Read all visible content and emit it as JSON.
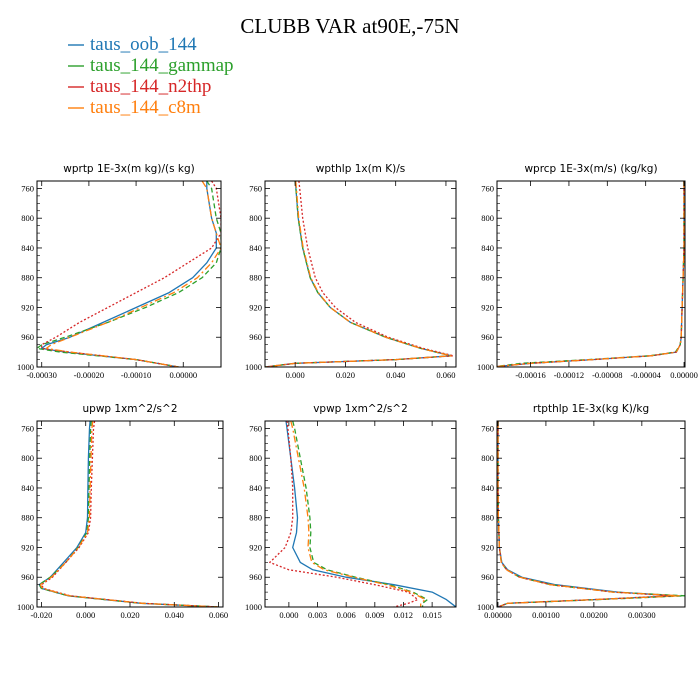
{
  "title": "CLUBB VAR at90E,-75N",
  "legend": [
    {
      "name": "taus_oob_144",
      "color": "#1f77b4",
      "dash": "solid"
    },
    {
      "name": "taus_144_gammap",
      "color": "#2ca02c",
      "dash": "dash"
    },
    {
      "name": "taus_144_n2thp",
      "color": "#d62728",
      "dash": "dot"
    },
    {
      "name": "taus_144_c8m",
      "color": "#ff7f0e",
      "dash": "dashdot"
    }
  ],
  "chart_data": [
    {
      "type": "line",
      "title": "wprtp  1E-3x(m kg)/(s kg)",
      "xlim": [
        -0.00031,
        8e-05
      ],
      "ylim": [
        1000,
        750
      ],
      "xticks": [
        -0.0003,
        -0.0002,
        -0.0001,
        0.0
      ],
      "xtick_labels": [
        "-0.00030",
        "-0.00020",
        "-0.00010",
        "0.00000"
      ],
      "yticks": [
        760,
        800,
        840,
        880,
        920,
        960,
        1000
      ],
      "y": [
        750,
        760,
        800,
        820,
        840,
        860,
        880,
        900,
        920,
        940,
        960,
        970,
        975,
        980,
        990,
        1000
      ],
      "series": [
        {
          "name": "taus_oob_144",
          "x": [
            5e-05,
            5e-05,
            6e-05,
            7e-05,
            7e-05,
            5e-05,
            2e-05,
            -3e-05,
            -0.0001,
            -0.00017,
            -0.00024,
            -0.00029,
            -0.0003,
            -0.00025,
            -0.0001,
            -1e-05
          ]
        },
        {
          "name": "taus_144_gammap",
          "x": [
            5e-05,
            6e-05,
            7e-05,
            8e-05,
            8e-05,
            7e-05,
            4e-05,
            -1e-05,
            -8e-05,
            -0.00016,
            -0.00025,
            -0.0003,
            -0.00031,
            -0.00026,
            -0.0001,
            -1e-05
          ]
        },
        {
          "name": "taus_144_n2thp",
          "x": [
            6e-05,
            7e-05,
            8e-05,
            8e-05,
            6e-05,
            1e-05,
            -4e-05,
            -0.0001,
            -0.00016,
            -0.00022,
            -0.00027,
            -0.0003,
            -0.0003,
            -0.00024,
            -0.0001,
            -1e-05
          ]
        },
        {
          "name": "taus_144_c8m",
          "x": [
            4e-05,
            5e-05,
            6e-05,
            7e-05,
            8e-05,
            6e-05,
            3e-05,
            -2e-05,
            -9e-05,
            -0.00016,
            -0.00024,
            -0.00028,
            -0.00029,
            -0.00024,
            -0.0001,
            -1e-05
          ]
        }
      ]
    },
    {
      "type": "line",
      "title": "wpthlp  1x(m K)/s",
      "xlim": [
        -0.012,
        0.064
      ],
      "ylim": [
        1000,
        750
      ],
      "xticks": [
        0.0,
        0.02,
        0.04,
        0.06
      ],
      "xtick_labels": [
        "0.000",
        "0.020",
        "0.040",
        "0.060"
      ],
      "yticks": [
        760,
        800,
        840,
        880,
        920,
        960,
        1000
      ],
      "y": [
        750,
        760,
        800,
        840,
        880,
        900,
        920,
        940,
        960,
        975,
        985,
        990,
        995,
        1000
      ],
      "series": [
        {
          "name": "taus_oob_144",
          "x": [
            0.0,
            0.0003,
            0.0012,
            0.003,
            0.006,
            0.009,
            0.014,
            0.022,
            0.036,
            0.05,
            0.062,
            0.04,
            0.0,
            -0.012
          ]
        },
        {
          "name": "taus_144_gammap",
          "x": [
            0.0,
            0.0003,
            0.0012,
            0.003,
            0.006,
            0.009,
            0.014,
            0.022,
            0.036,
            0.05,
            0.062,
            0.04,
            0.0,
            -0.012
          ]
        },
        {
          "name": "taus_144_n2thp",
          "x": [
            0.0015,
            0.0018,
            0.003,
            0.005,
            0.008,
            0.011,
            0.016,
            0.024,
            0.037,
            0.051,
            0.063,
            0.04,
            0.0,
            -0.012
          ]
        },
        {
          "name": "taus_144_c8m",
          "x": [
            0.0002,
            0.0005,
            0.0014,
            0.0032,
            0.0062,
            0.0092,
            0.014,
            0.022,
            0.036,
            0.05,
            0.062,
            0.04,
            0.0,
            -0.012
          ]
        }
      ]
    },
    {
      "type": "line",
      "title": "wprcp  1E-3x(m/s) (kg/kg)",
      "xlim": [
        -0.000195,
        1e-06
      ],
      "ylim": [
        1000,
        750
      ],
      "xticks": [
        -0.00016,
        -0.00012,
        -8e-05,
        -4e-05,
        0.0
      ],
      "xtick_labels": [
        "-0.00016",
        "-0.00012",
        "-0.00008",
        "-0.00004",
        "0.00000"
      ],
      "yticks": [
        760,
        800,
        840,
        880,
        920,
        960,
        1000
      ],
      "y": [
        750,
        760,
        800,
        840,
        880,
        920,
        960,
        970,
        980,
        985,
        990,
        995,
        1000
      ],
      "series": [
        {
          "name": "taus_oob_144",
          "x": [
            0.0,
            0.0,
            0.0,
            0.0,
            -1e-06,
            -2e-06,
            -3e-06,
            -4e-06,
            -8e-06,
            -3.5e-05,
            -9.5e-05,
            -0.00016,
            -0.0002
          ]
        },
        {
          "name": "taus_144_gammap",
          "x": [
            0.0,
            0.0,
            0.0,
            0.0,
            -1e-06,
            -2e-06,
            -3e-06,
            -4e-06,
            -9e-06,
            -3.6e-05,
            -0.0001,
            -0.00017,
            -0.0002
          ]
        },
        {
          "name": "taus_144_n2thp",
          "x": [
            0.0,
            0.0,
            0.0,
            0.0,
            -1e-06,
            -2e-06,
            -3e-06,
            -4e-06,
            -8e-06,
            -3.4e-05,
            -9.5e-05,
            -0.00016,
            -0.0002
          ]
        },
        {
          "name": "taus_144_c8m",
          "x": [
            0.0,
            0.0,
            0.0,
            0.0,
            -1e-06,
            -2e-06,
            -3e-06,
            -4e-06,
            -8e-06,
            -3.5e-05,
            -9.5e-05,
            -0.00016,
            -0.0002
          ]
        }
      ]
    },
    {
      "type": "line",
      "title": "upwp  1xm^2/s^2",
      "xlim": [
        -0.022,
        0.062
      ],
      "ylim": [
        1000,
        750
      ],
      "xticks": [
        -0.02,
        0.0,
        0.02,
        0.04,
        0.06
      ],
      "xtick_labels": [
        "-0.020",
        "0.000",
        "0.020",
        "0.040",
        "0.060"
      ],
      "yticks": [
        760,
        800,
        840,
        880,
        920,
        960,
        1000
      ],
      "y": [
        750,
        760,
        800,
        840,
        880,
        900,
        920,
        940,
        960,
        970,
        975,
        985,
        995,
        1000
      ],
      "series": [
        {
          "name": "taus_oob_144",
          "x": [
            0.002,
            0.0017,
            0.0012,
            0.001,
            0.0008,
            0.0,
            -0.004,
            -0.01,
            -0.016,
            -0.021,
            -0.02,
            -0.008,
            0.025,
            0.06
          ]
        },
        {
          "name": "taus_144_gammap",
          "x": [
            0.0025,
            0.0022,
            0.0018,
            0.0015,
            0.0012,
            0.0005,
            -0.0035,
            -0.009,
            -0.016,
            -0.021,
            -0.02,
            -0.008,
            0.025,
            0.06
          ]
        },
        {
          "name": "taus_144_n2thp",
          "x": [
            0.004,
            0.0035,
            0.003,
            0.0025,
            0.0022,
            0.0012,
            -0.003,
            -0.009,
            -0.015,
            -0.02,
            -0.019,
            -0.007,
            0.026,
            0.06
          ]
        },
        {
          "name": "taus_144_c8m",
          "x": [
            0.0032,
            0.0028,
            0.0024,
            0.002,
            0.0017,
            0.0008,
            -0.0033,
            -0.009,
            -0.0155,
            -0.0205,
            -0.0195,
            -0.0075,
            0.0255,
            0.06
          ]
        }
      ]
    },
    {
      "type": "line",
      "title": "vpwp  1xm^2/s^2",
      "xlim": [
        -0.0025,
        0.0175
      ],
      "ylim": [
        1000,
        750
      ],
      "xticks": [
        0.0,
        0.003,
        0.006,
        0.009,
        0.012,
        0.015
      ],
      "xtick_labels": [
        "0.000",
        "0.003",
        "0.006",
        "0.009",
        "0.012",
        "0.015"
      ],
      "yticks": [
        760,
        800,
        840,
        880,
        920,
        960,
        1000
      ],
      "y": [
        750,
        760,
        800,
        840,
        880,
        900,
        920,
        940,
        950,
        960,
        970,
        980,
        990,
        995,
        1000
      ],
      "series": [
        {
          "name": "taus_oob_144",
          "x": [
            -0.0003,
            -0.0002,
            0.0002,
            0.0006,
            0.0009,
            0.0008,
            0.0004,
            0.0012,
            0.0025,
            0.006,
            0.011,
            0.015,
            0.0165,
            0.017,
            0.0175
          ]
        },
        {
          "name": "taus_144_gammap",
          "x": [
            0.0004,
            0.0006,
            0.0012,
            0.0018,
            0.0022,
            0.0023,
            0.0022,
            0.0026,
            0.004,
            0.007,
            0.0105,
            0.013,
            0.0145,
            0.014,
            0.014
          ]
        },
        {
          "name": "taus_144_n2thp",
          "x": [
            -0.0002,
            -0.0001,
            0.0002,
            0.0004,
            0.0004,
            0.0002,
            -0.0004,
            -0.002,
            0.0,
            0.005,
            0.009,
            0.0125,
            0.0135,
            0.0125,
            0.011
          ]
        },
        {
          "name": "taus_144_c8m",
          "x": [
            0.0002,
            0.0004,
            0.001,
            0.0016,
            0.002,
            0.0021,
            0.002,
            0.0024,
            0.0037,
            0.0068,
            0.0102,
            0.0128,
            0.0143,
            0.0138,
            0.0138
          ]
        }
      ]
    },
    {
      "type": "line",
      "title": "rtpthlp  1E-3x(kg K)/kg",
      "xlim": [
        -2e-05,
        0.0039
      ],
      "ylim": [
        1000,
        750
      ],
      "xticks": [
        0.0,
        0.001,
        0.002,
        0.003
      ],
      "xtick_labels": [
        "0.00000",
        "0.00100",
        "0.00200",
        "0.00300"
      ],
      "yticks": [
        760,
        800,
        840,
        880,
        920,
        960,
        1000
      ],
      "y": [
        750,
        760,
        800,
        840,
        880,
        920,
        940,
        950,
        960,
        970,
        980,
        985,
        990,
        995,
        1000
      ],
      "series": [
        {
          "name": "taus_oob_144",
          "x": [
            0.0,
            0.0,
            0.0,
            0.0,
            1e-05,
            3e-05,
            8e-05,
            0.0002,
            0.0005,
            0.0012,
            0.0025,
            0.0037,
            0.002,
            0.0002,
            0.0
          ]
        },
        {
          "name": "taus_144_gammap",
          "x": [
            0.0,
            0.0,
            0.0,
            0.0,
            1e-05,
            3e-05,
            7e-05,
            0.00018,
            0.00045,
            0.0011,
            0.0024,
            0.0039,
            0.0021,
            0.0002,
            0.0
          ]
        },
        {
          "name": "taus_144_n2thp",
          "x": [
            0.0,
            0.0,
            0.0,
            0.0,
            1e-05,
            3e-05,
            7e-05,
            0.00018,
            0.00045,
            0.0011,
            0.0024,
            0.0036,
            0.002,
            0.0002,
            0.0
          ]
        },
        {
          "name": "taus_144_c8m",
          "x": [
            0.0,
            0.0,
            0.0,
            0.0,
            1e-05,
            3e-05,
            7e-05,
            0.00018,
            0.00046,
            0.0011,
            0.0024,
            0.0038,
            0.002,
            0.0002,
            0.0
          ]
        }
      ]
    }
  ]
}
